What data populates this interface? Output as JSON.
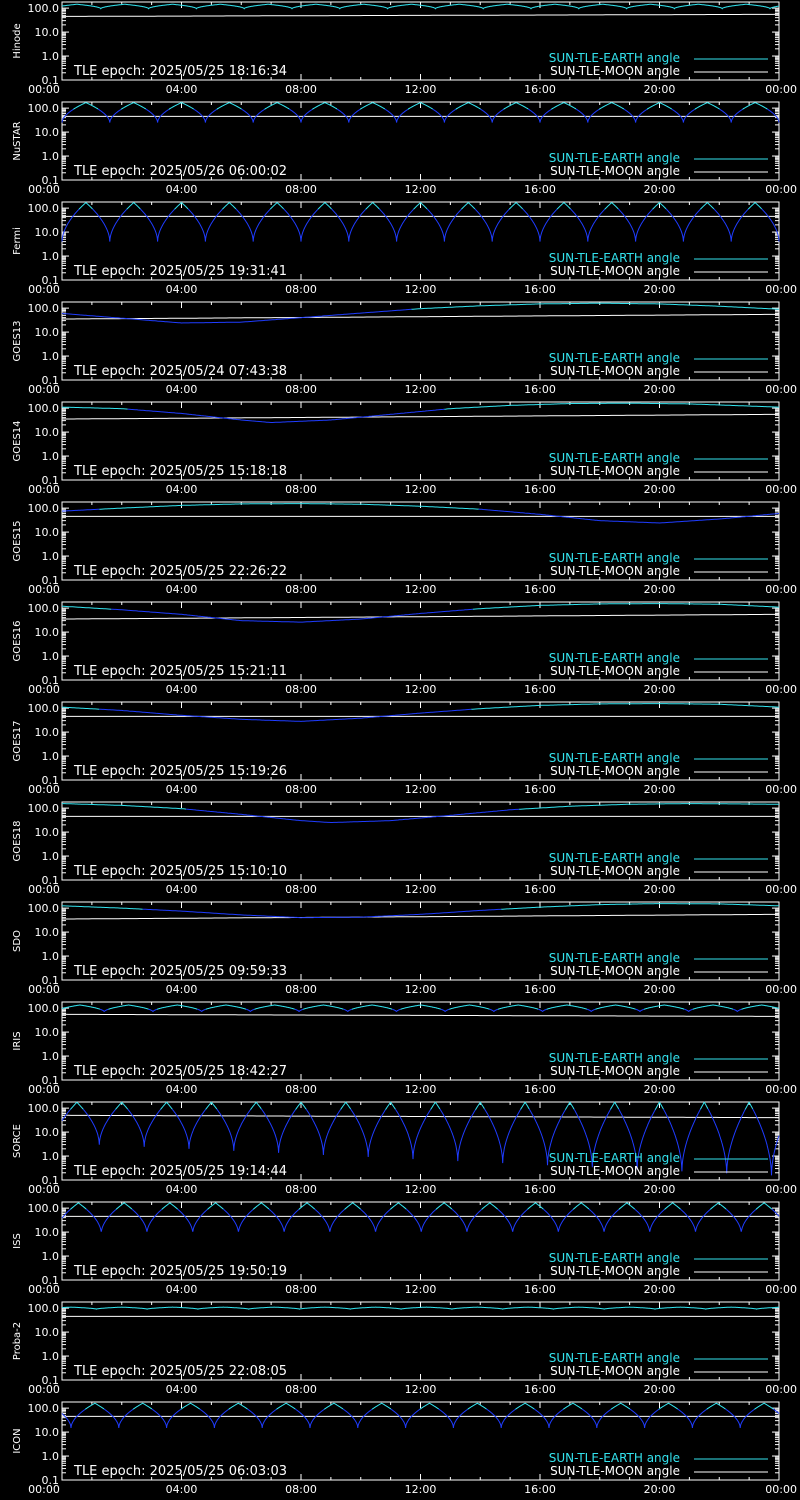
{
  "colors": {
    "background": "#000000",
    "frame": "#ffffff",
    "sun_earth": "#33e3ee",
    "sun_earth_dip": "#1f3cff",
    "sun_moon": "#ffffff"
  },
  "legend": {
    "sun_earth_label": "SUN-TLE-EARTH angle",
    "sun_moon_label": "SUN-TLE-MOON angle"
  },
  "x_tick_labels": [
    "00:00",
    "04:00",
    "08:00",
    "12:00",
    "16:00",
    "20:00",
    "00:00"
  ],
  "y_tick_labels": [
    "100.0",
    "10.0",
    "1.0",
    "0.1"
  ],
  "chart_data": [
    {
      "type": "line",
      "panel": "Hinode",
      "epoch": "TLE epoch: 2025/05/25 18:16:34",
      "x_unit": "hours",
      "xlim": [
        0,
        24
      ],
      "y_scale": "log",
      "ylim": [
        0.1,
        180
      ],
      "series": [
        {
          "name": "SUN-TLE-EARTH angle",
          "model": "orbital",
          "period_hours": 1.6,
          "phase_hours": 0.5,
          "max": 145,
          "min": 95
        },
        {
          "name": "SUN-TLE-MOON angle",
          "model": "trend",
          "x": [
            0,
            24
          ],
          "values": [
            45,
            55
          ]
        }
      ]
    },
    {
      "type": "line",
      "panel": "NuSTAR",
      "epoch": "TLE epoch: 2025/05/26 06:00:02",
      "x_unit": "hours",
      "xlim": [
        0,
        24
      ],
      "y_scale": "log",
      "ylim": [
        0.1,
        180
      ],
      "series": [
        {
          "name": "SUN-TLE-EARTH angle",
          "model": "orbital",
          "period_hours": 1.6,
          "phase_hours": 0.8,
          "max": 170,
          "min": 25
        },
        {
          "name": "SUN-TLE-MOON angle",
          "model": "trend",
          "x": [
            0,
            24
          ],
          "values": [
            45,
            45
          ]
        }
      ]
    },
    {
      "type": "line",
      "panel": "Fermi",
      "epoch": "TLE epoch: 2025/05/25 19:31:41",
      "x_unit": "hours",
      "xlim": [
        0,
        24
      ],
      "y_scale": "log",
      "ylim": [
        0.1,
        180
      ],
      "series": [
        {
          "name": "SUN-TLE-EARTH angle",
          "model": "orbital",
          "period_hours": 1.6,
          "phase_hours": 0.8,
          "max": 170,
          "min": 4
        },
        {
          "name": "SUN-TLE-MOON angle",
          "model": "trend",
          "x": [
            0,
            24
          ],
          "values": [
            45,
            45
          ]
        }
      ]
    },
    {
      "type": "line",
      "panel": "GOES13",
      "epoch": "TLE epoch: 2025/05/24 07:43:38",
      "x_unit": "hours",
      "xlim": [
        0,
        24
      ],
      "y_scale": "log",
      "ylim": [
        0.1,
        180
      ],
      "series": [
        {
          "name": "SUN-TLE-EARTH angle",
          "model": "trend",
          "x": [
            0,
            2,
            4,
            6,
            8,
            10,
            12,
            14,
            16,
            18,
            20,
            22,
            24
          ],
          "values": [
            60,
            38,
            24,
            26,
            40,
            62,
            95,
            125,
            150,
            160,
            150,
            120,
            90
          ]
        },
        {
          "name": "SUN-TLE-MOON angle",
          "model": "trend",
          "x": [
            0,
            24
          ],
          "values": [
            35,
            55
          ]
        }
      ]
    },
    {
      "type": "line",
      "panel": "GOES14",
      "epoch": "TLE epoch: 2025/05/25 15:18:18",
      "x_unit": "hours",
      "xlim": [
        0,
        24
      ],
      "y_scale": "log",
      "ylim": [
        0.1,
        180
      ],
      "series": [
        {
          "name": "SUN-TLE-EARTH angle",
          "model": "trend",
          "x": [
            0,
            2,
            4,
            6,
            7,
            9,
            11,
            13,
            15,
            17,
            19,
            21,
            24
          ],
          "values": [
            110,
            95,
            60,
            32,
            25,
            32,
            55,
            95,
            130,
            155,
            160,
            150,
            110
          ]
        },
        {
          "name": "SUN-TLE-MOON angle",
          "model": "trend",
          "x": [
            0,
            24
          ],
          "values": [
            35,
            55
          ]
        }
      ]
    },
    {
      "type": "line",
      "panel": "GOES15",
      "epoch": "TLE epoch: 2025/05/25 22:26:22",
      "x_unit": "hours",
      "xlim": [
        0,
        24
      ],
      "y_scale": "log",
      "ylim": [
        0.1,
        180
      ],
      "series": [
        {
          "name": "SUN-TLE-EARTH angle",
          "model": "trend",
          "x": [
            0,
            2,
            4,
            6,
            8,
            10,
            12,
            14,
            16,
            18,
            20,
            22,
            24
          ],
          "values": [
            75,
            100,
            130,
            150,
            155,
            145,
            120,
            90,
            55,
            30,
            24,
            35,
            60
          ]
        },
        {
          "name": "SUN-TLE-MOON angle",
          "model": "trend",
          "x": [
            0,
            24
          ],
          "values": [
            45,
            45
          ]
        }
      ]
    },
    {
      "type": "line",
      "panel": "GOES16",
      "epoch": "TLE epoch: 2025/05/25 15:21:11",
      "x_unit": "hours",
      "xlim": [
        0,
        24
      ],
      "y_scale": "log",
      "ylim": [
        0.1,
        180
      ],
      "series": [
        {
          "name": "SUN-TLE-EARTH angle",
          "model": "trend",
          "x": [
            0,
            2,
            4,
            6,
            8,
            10,
            12,
            14,
            16,
            18,
            20,
            22,
            24
          ],
          "values": [
            120,
            85,
            55,
            30,
            26,
            35,
            60,
            95,
            130,
            150,
            155,
            145,
            110
          ]
        },
        {
          "name": "SUN-TLE-MOON angle",
          "model": "trend",
          "x": [
            0,
            24
          ],
          "values": [
            35,
            55
          ]
        }
      ]
    },
    {
      "type": "line",
      "panel": "GOES17",
      "epoch": "TLE epoch: 2025/05/25 15:19:26",
      "x_unit": "hours",
      "xlim": [
        0,
        24
      ],
      "y_scale": "log",
      "ylim": [
        0.1,
        180
      ],
      "series": [
        {
          "name": "SUN-TLE-EARTH angle",
          "model": "trend",
          "x": [
            0,
            2,
            4,
            6,
            8,
            10,
            12,
            14,
            16,
            18,
            20,
            22,
            24
          ],
          "values": [
            110,
            80,
            50,
            34,
            28,
            38,
            62,
            95,
            130,
            150,
            155,
            145,
            110
          ]
        },
        {
          "name": "SUN-TLE-MOON angle",
          "model": "trend",
          "x": [
            0,
            24
          ],
          "values": [
            45,
            45
          ]
        }
      ]
    },
    {
      "type": "line",
      "panel": "GOES18",
      "epoch": "TLE epoch: 2025/05/25 15:10:10",
      "x_unit": "hours",
      "xlim": [
        0,
        24
      ],
      "y_scale": "log",
      "ylim": [
        0.1,
        180
      ],
      "series": [
        {
          "name": "SUN-TLE-EARTH angle",
          "model": "trend",
          "x": [
            0,
            2,
            4,
            6,
            8,
            9,
            11,
            13,
            15,
            17,
            19,
            21,
            24
          ],
          "values": [
            155,
            130,
            95,
            55,
            30,
            25,
            30,
            50,
            85,
            120,
            145,
            155,
            145
          ]
        },
        {
          "name": "SUN-TLE-MOON angle",
          "model": "trend",
          "x": [
            0,
            24
          ],
          "values": [
            45,
            45
          ]
        }
      ]
    },
    {
      "type": "line",
      "panel": "SDO",
      "epoch": "TLE epoch: 2025/05/25 09:59:33",
      "x_unit": "hours",
      "xlim": [
        0,
        24
      ],
      "y_scale": "log",
      "ylim": [
        0.1,
        180
      ],
      "series": [
        {
          "name": "SUN-TLE-EARTH angle",
          "model": "trend",
          "x": [
            0,
            2,
            4,
            6,
            8,
            10,
            12,
            14,
            16,
            18,
            20,
            22,
            24
          ],
          "values": [
            125,
            100,
            75,
            52,
            40,
            42,
            55,
            80,
            110,
            140,
            155,
            150,
            125
          ]
        },
        {
          "name": "SUN-TLE-MOON angle",
          "model": "trend",
          "x": [
            0,
            24
          ],
          "values": [
            35,
            55
          ]
        }
      ]
    },
    {
      "type": "line",
      "panel": "IRIS",
      "epoch": "TLE epoch: 2025/05/25 18:42:27",
      "x_unit": "hours",
      "xlim": [
        0,
        24
      ],
      "y_scale": "log",
      "ylim": [
        0.1,
        180
      ],
      "series": [
        {
          "name": "SUN-TLE-EARTH angle",
          "model": "orbital",
          "period_hours": 1.63,
          "phase_hours": 0.6,
          "max": 135,
          "min": 70
        },
        {
          "name": "SUN-TLE-MOON angle",
          "model": "trend",
          "x": [
            0,
            24
          ],
          "values": [
            55,
            45
          ]
        }
      ]
    },
    {
      "type": "line",
      "panel": "SORCE",
      "epoch": "TLE epoch: 2025/05/25 19:14:44",
      "x_unit": "hours",
      "xlim": [
        0,
        24
      ],
      "y_scale": "log",
      "ylim": [
        0.1,
        180
      ],
      "series": [
        {
          "name": "SUN-TLE-EARTH angle",
          "model": "orbital",
          "period_hours": 1.5,
          "phase_hours": 0.5,
          "max": 175,
          "min": 3.5,
          "min_end": 0.15
        },
        {
          "name": "SUN-TLE-MOON angle",
          "model": "trend",
          "x": [
            0,
            24
          ],
          "values": [
            50,
            40
          ]
        }
      ]
    },
    {
      "type": "line",
      "panel": "ISS",
      "epoch": "TLE epoch: 2025/05/25 19:50:19",
      "x_unit": "hours",
      "xlim": [
        0,
        24
      ],
      "y_scale": "log",
      "ylim": [
        0.1,
        180
      ],
      "series": [
        {
          "name": "SUN-TLE-EARTH angle",
          "model": "orbital",
          "period_hours": 1.53,
          "phase_hours": 0.55,
          "max": 165,
          "min": 9
        },
        {
          "name": "SUN-TLE-MOON angle",
          "model": "trend",
          "x": [
            0,
            24
          ],
          "values": [
            45,
            45
          ]
        }
      ]
    },
    {
      "type": "line",
      "panel": "Proba-2",
      "epoch": "TLE epoch: 2025/05/25 22:08:05",
      "x_unit": "hours",
      "xlim": [
        0,
        24
      ],
      "y_scale": "log",
      "ylim": [
        0.1,
        180
      ],
      "series": [
        {
          "name": "SUN-TLE-EARTH angle",
          "model": "orbital",
          "period_hours": 1.7,
          "phase_hours": 0.3,
          "max": 110,
          "min": 90
        },
        {
          "name": "SUN-TLE-MOON angle",
          "model": "trend",
          "x": [
            0,
            24
          ],
          "values": [
            45,
            45
          ]
        }
      ]
    },
    {
      "type": "line",
      "panel": "ICON",
      "epoch": "TLE epoch: 2025/05/25 06:03:03",
      "x_unit": "hours",
      "xlim": [
        0,
        24
      ],
      "y_scale": "log",
      "ylim": [
        0.1,
        180
      ],
      "series": [
        {
          "name": "SUN-TLE-EARTH angle",
          "model": "orbital",
          "period_hours": 1.6,
          "phase_hours": 1.1,
          "max": 160,
          "min": 15
        },
        {
          "name": "SUN-TLE-MOON angle",
          "model": "trend",
          "x": [
            0,
            24
          ],
          "values": [
            45,
            45
          ]
        }
      ]
    }
  ]
}
